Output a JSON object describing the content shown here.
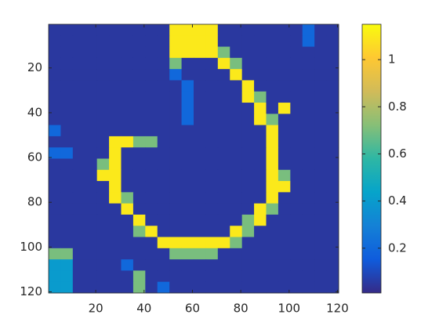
{
  "chart_data": {
    "type": "heatmap",
    "x": [
      3,
      8,
      13,
      18,
      23,
      28,
      33,
      38,
      43,
      48,
      53,
      58,
      63,
      68,
      73,
      78,
      83,
      88,
      93,
      98,
      103,
      108,
      113,
      118
    ],
    "y": [
      3,
      8,
      13,
      18,
      23,
      28,
      33,
      38,
      43,
      48,
      53,
      58,
      63,
      68,
      73,
      78,
      83,
      88,
      93,
      98,
      103,
      108,
      113,
      118
    ],
    "z": [
      [
        0.05,
        0.05,
        0.05,
        0.05,
        0.05,
        0.05,
        0.05,
        0.05,
        0.05,
        0.05,
        1.1,
        1.1,
        1.1,
        1.1,
        0.05,
        0.05,
        0.05,
        0.05,
        0.05,
        0.05,
        0.05,
        0.2,
        0.05,
        0.05
      ],
      [
        0.05,
        0.05,
        0.05,
        0.05,
        0.05,
        0.05,
        0.05,
        0.05,
        0.05,
        0.05,
        1.1,
        1.1,
        1.1,
        1.1,
        0.05,
        0.05,
        0.05,
        0.05,
        0.05,
        0.05,
        0.05,
        0.2,
        0.05,
        0.05
      ],
      [
        0.05,
        0.05,
        0.05,
        0.05,
        0.05,
        0.05,
        0.05,
        0.05,
        0.05,
        0.05,
        1.1,
        1.1,
        1.1,
        1.1,
        0.7,
        0.05,
        0.05,
        0.05,
        0.05,
        0.05,
        0.05,
        0.05,
        0.05,
        0.05
      ],
      [
        0.05,
        0.05,
        0.05,
        0.05,
        0.05,
        0.05,
        0.05,
        0.05,
        0.05,
        0.05,
        0.7,
        0.05,
        0.05,
        0.05,
        1.1,
        0.7,
        0.05,
        0.05,
        0.05,
        0.05,
        0.05,
        0.05,
        0.05,
        0.05
      ],
      [
        0.05,
        0.05,
        0.05,
        0.05,
        0.05,
        0.05,
        0.05,
        0.05,
        0.05,
        0.05,
        0.2,
        0.05,
        0.05,
        0.05,
        0.05,
        1.1,
        0.05,
        0.05,
        0.05,
        0.05,
        0.05,
        0.05,
        0.05,
        0.05
      ],
      [
        0.05,
        0.05,
        0.05,
        0.05,
        0.05,
        0.05,
        0.05,
        0.05,
        0.05,
        0.05,
        0.05,
        0.2,
        0.05,
        0.05,
        0.05,
        0.05,
        1.1,
        0.05,
        0.05,
        0.05,
        0.05,
        0.05,
        0.05,
        0.05
      ],
      [
        0.05,
        0.05,
        0.05,
        0.05,
        0.05,
        0.05,
        0.05,
        0.05,
        0.05,
        0.05,
        0.05,
        0.2,
        0.05,
        0.05,
        0.05,
        0.05,
        1.1,
        0.7,
        0.05,
        0.05,
        0.05,
        0.05,
        0.05,
        0.05
      ],
      [
        0.05,
        0.05,
        0.05,
        0.05,
        0.05,
        0.05,
        0.05,
        0.05,
        0.05,
        0.05,
        0.05,
        0.2,
        0.05,
        0.05,
        0.05,
        0.05,
        0.05,
        1.1,
        0.05,
        1.1,
        0.05,
        0.05,
        0.05,
        0.05
      ],
      [
        0.05,
        0.05,
        0.05,
        0.05,
        0.05,
        0.05,
        0.05,
        0.05,
        0.05,
        0.05,
        0.05,
        0.2,
        0.05,
        0.05,
        0.05,
        0.05,
        0.05,
        1.1,
        0.7,
        0.05,
        0.05,
        0.05,
        0.05,
        0.05
      ],
      [
        0.2,
        0.05,
        0.05,
        0.05,
        0.05,
        0.05,
        0.05,
        0.05,
        0.05,
        0.05,
        0.05,
        0.05,
        0.05,
        0.05,
        0.05,
        0.05,
        0.05,
        0.05,
        1.1,
        0.05,
        0.05,
        0.05,
        0.05,
        0.05
      ],
      [
        0.05,
        0.05,
        0.05,
        0.05,
        0.05,
        1.1,
        1.1,
        0.7,
        0.7,
        0.05,
        0.05,
        0.05,
        0.05,
        0.05,
        0.05,
        0.05,
        0.05,
        0.05,
        1.1,
        0.05,
        0.05,
        0.05,
        0.05,
        0.05
      ],
      [
        0.2,
        0.2,
        0.05,
        0.05,
        0.05,
        1.1,
        0.05,
        0.05,
        0.05,
        0.05,
        0.05,
        0.05,
        0.05,
        0.05,
        0.05,
        0.05,
        0.05,
        0.05,
        1.1,
        0.05,
        0.05,
        0.05,
        0.05,
        0.05
      ],
      [
        0.05,
        0.05,
        0.05,
        0.05,
        0.7,
        1.1,
        0.05,
        0.05,
        0.05,
        0.05,
        0.05,
        0.05,
        0.05,
        0.05,
        0.05,
        0.05,
        0.05,
        0.05,
        1.1,
        0.05,
        0.05,
        0.05,
        0.05,
        0.05
      ],
      [
        0.05,
        0.05,
        0.05,
        0.05,
        1.1,
        1.1,
        0.05,
        0.05,
        0.05,
        0.05,
        0.05,
        0.05,
        0.05,
        0.05,
        0.05,
        0.05,
        0.05,
        0.05,
        1.1,
        0.7,
        0.05,
        0.05,
        0.05,
        0.05
      ],
      [
        0.05,
        0.05,
        0.05,
        0.05,
        0.05,
        1.1,
        0.05,
        0.05,
        0.05,
        0.05,
        0.05,
        0.05,
        0.05,
        0.05,
        0.05,
        0.05,
        0.05,
        0.05,
        1.1,
        1.1,
        0.05,
        0.05,
        0.05,
        0.05
      ],
      [
        0.05,
        0.05,
        0.05,
        0.05,
        0.05,
        1.1,
        0.7,
        0.05,
        0.05,
        0.05,
        0.05,
        0.05,
        0.05,
        0.05,
        0.05,
        0.05,
        0.05,
        0.05,
        1.1,
        0.05,
        0.05,
        0.05,
        0.05,
        0.05
      ],
      [
        0.05,
        0.05,
        0.05,
        0.05,
        0.05,
        0.05,
        1.1,
        0.05,
        0.05,
        0.05,
        0.05,
        0.05,
        0.05,
        0.05,
        0.05,
        0.05,
        0.05,
        1.1,
        0.7,
        0.05,
        0.05,
        0.05,
        0.05,
        0.05
      ],
      [
        0.05,
        0.05,
        0.05,
        0.05,
        0.05,
        0.05,
        0.05,
        1.1,
        0.05,
        0.05,
        0.05,
        0.05,
        0.05,
        0.05,
        0.05,
        0.05,
        0.7,
        1.1,
        0.05,
        0.05,
        0.05,
        0.05,
        0.05,
        0.05
      ],
      [
        0.05,
        0.05,
        0.05,
        0.05,
        0.05,
        0.05,
        0.05,
        0.7,
        1.1,
        0.05,
        0.05,
        0.05,
        0.05,
        0.05,
        0.05,
        1.1,
        0.7,
        0.05,
        0.05,
        0.05,
        0.05,
        0.05,
        0.05,
        0.05
      ],
      [
        0.05,
        0.05,
        0.05,
        0.05,
        0.05,
        0.05,
        0.05,
        0.05,
        0.05,
        1.1,
        1.1,
        1.1,
        1.1,
        1.1,
        1.1,
        0.7,
        0.05,
        0.05,
        0.05,
        0.05,
        0.05,
        0.05,
        0.05,
        0.05
      ],
      [
        0.7,
        0.7,
        0.05,
        0.05,
        0.05,
        0.05,
        0.05,
        0.05,
        0.05,
        0.05,
        0.7,
        0.7,
        0.7,
        0.7,
        0.05,
        0.05,
        0.05,
        0.05,
        0.05,
        0.05,
        0.05,
        0.05,
        0.05,
        0.05
      ],
      [
        0.4,
        0.4,
        0.05,
        0.05,
        0.05,
        0.05,
        0.2,
        0.05,
        0.05,
        0.05,
        0.05,
        0.05,
        0.05,
        0.05,
        0.05,
        0.05,
        0.05,
        0.05,
        0.05,
        0.05,
        0.05,
        0.05,
        0.05,
        0.05
      ],
      [
        0.4,
        0.4,
        0.05,
        0.05,
        0.05,
        0.05,
        0.05,
        0.7,
        0.05,
        0.05,
        0.05,
        0.05,
        0.05,
        0.05,
        0.05,
        0.05,
        0.05,
        0.05,
        0.05,
        0.05,
        0.05,
        0.05,
        0.05,
        0.05
      ],
      [
        0.4,
        0.4,
        0.05,
        0.05,
        0.05,
        0.05,
        0.05,
        0.7,
        0.05,
        0.2,
        0.05,
        0.05,
        0.05,
        0.05,
        0.05,
        0.05,
        0.05,
        0.05,
        0.05,
        0.05,
        0.05,
        0.05,
        0.05,
        0.05
      ]
    ],
    "xlim": [
      0.5,
      120.5
    ],
    "ylim": [
      0.5,
      120.5
    ],
    "y_reversed": true,
    "xticks": [
      20,
      40,
      60,
      80,
      100,
      120
    ],
    "yticks": [
      20,
      40,
      60,
      80,
      100,
      120
    ],
    "clim": [
      0.01,
      1.15
    ],
    "colorbar_ticks": [
      0.2,
      0.4,
      0.6,
      0.8,
      1
    ],
    "colormap": [
      "#352a87",
      "#0f5cdd",
      "#1481d6",
      "#06a4ca",
      "#2eb7a4",
      "#87bf77",
      "#d1bb59",
      "#fec832",
      "#f9fb0e"
    ]
  }
}
